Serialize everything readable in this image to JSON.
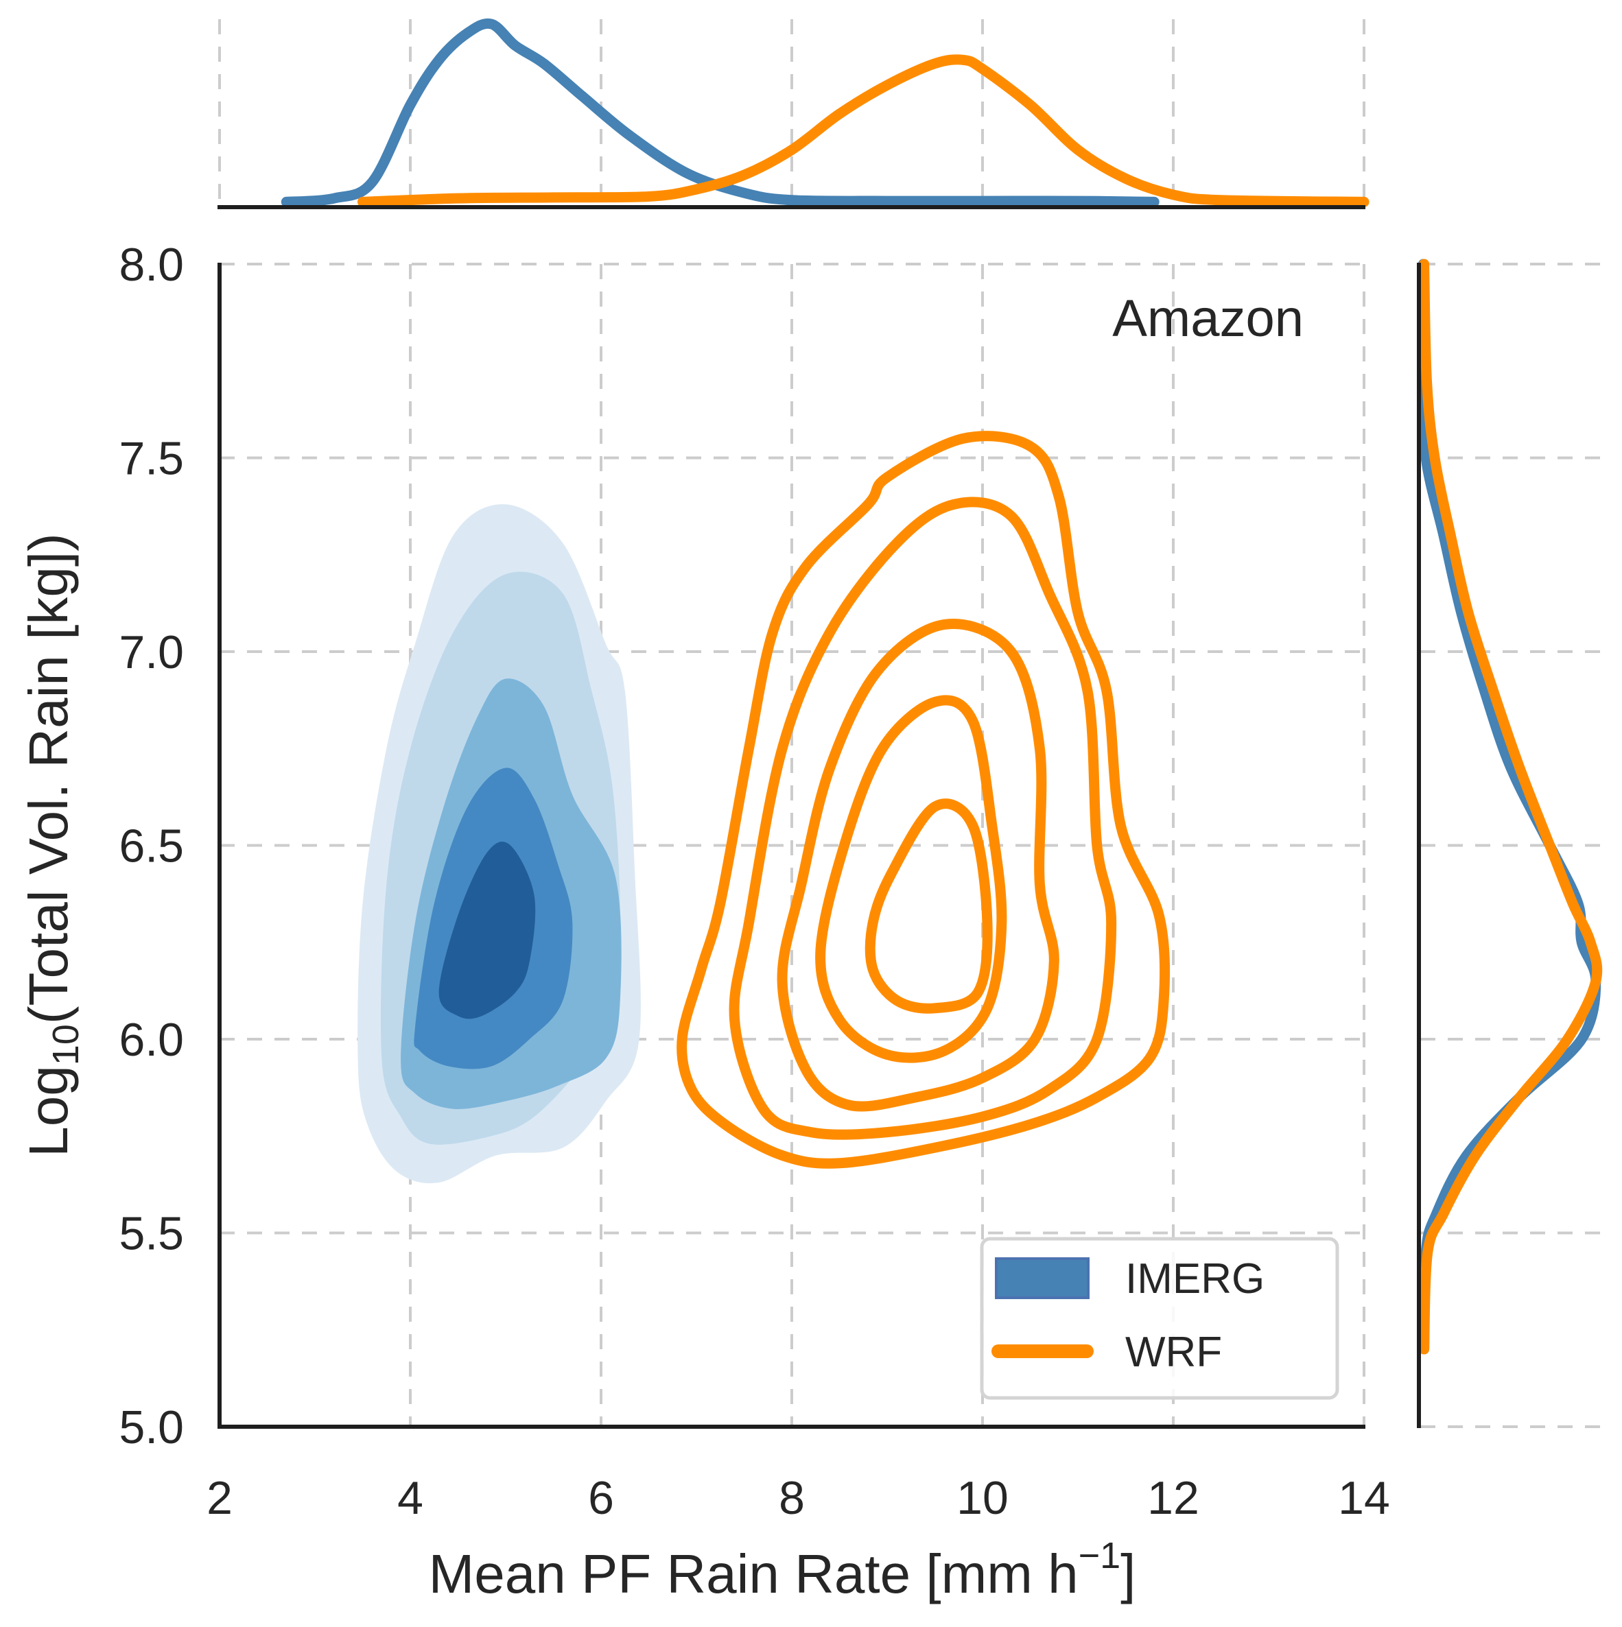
{
  "chart_data": {
    "type": "contour",
    "kind": "joint-kde",
    "annotation": "Amazon",
    "xlabel": "Mean PF Rain Rate [mm h",
    "xlabel_sup": "−1",
    "xlabel_suffix": "]",
    "ylabel_prefix": "Log",
    "ylabel_sub": "10",
    "ylabel_suffix": "(Total Vol. Rain [kg])",
    "xlim": [
      2,
      14
    ],
    "ylim": [
      5.0,
      8.0
    ],
    "xticks": [
      2,
      4,
      6,
      8,
      10,
      12,
      14
    ],
    "xtick_labels": [
      "2",
      "4",
      "6",
      "8",
      "10",
      "12",
      "14"
    ],
    "yticks": [
      5.0,
      5.5,
      6.0,
      6.5,
      7.0,
      7.5,
      8.0
    ],
    "ytick_labels": [
      "5.0",
      "5.5",
      "6.0",
      "6.5",
      "7.0",
      "7.5",
      "8.0"
    ],
    "grid": true,
    "grid_style": "dashed",
    "legend": {
      "position": "bottom-right",
      "entries": [
        {
          "label": "IMERG",
          "style": "filled",
          "color": "#4682b4"
        },
        {
          "label": "WRF",
          "style": "line",
          "color": "#ff8c00"
        }
      ]
    },
    "series": [
      {
        "name": "IMERG",
        "style": "filled",
        "colors": [
          "#dce9f4",
          "#bfd9eb",
          "#7db5d9",
          "#4489c3",
          "#215d98"
        ],
        "levels": [
          [
            [
              3.45,
              5.95
            ],
            [
              3.5,
              6.35
            ],
            [
              3.75,
              6.75
            ],
            [
              4.05,
              7.02
            ],
            [
              4.45,
              7.3
            ],
            [
              5.0,
              7.38
            ],
            [
              5.6,
              7.28
            ],
            [
              6.05,
              7.02
            ],
            [
              6.25,
              6.9
            ],
            [
              6.35,
              6.45
            ],
            [
              6.4,
              6.0
            ],
            [
              6.05,
              5.84
            ],
            [
              5.6,
              5.72
            ],
            [
              4.9,
              5.7
            ],
            [
              4.3,
              5.63
            ],
            [
              3.85,
              5.66
            ],
            [
              3.55,
              5.78
            ]
          ],
          [
            [
              3.7,
              5.95
            ],
            [
              3.75,
              6.4
            ],
            [
              4.0,
              6.75
            ],
            [
              4.45,
              7.05
            ],
            [
              5.0,
              7.2
            ],
            [
              5.6,
              7.15
            ],
            [
              5.9,
              6.9
            ],
            [
              6.12,
              6.65
            ],
            [
              6.2,
              6.3
            ],
            [
              6.1,
              6.05
            ],
            [
              5.8,
              5.93
            ],
            [
              5.3,
              5.8
            ],
            [
              4.85,
              5.75
            ],
            [
              4.2,
              5.73
            ],
            [
              3.9,
              5.8
            ]
          ],
          [
            [
              3.9,
              5.95
            ],
            [
              4.05,
              6.3
            ],
            [
              4.35,
              6.6
            ],
            [
              4.7,
              6.83
            ],
            [
              5.0,
              6.93
            ],
            [
              5.4,
              6.86
            ],
            [
              5.7,
              6.63
            ],
            [
              6.15,
              6.42
            ],
            [
              6.2,
              6.1
            ],
            [
              6.05,
              5.95
            ],
            [
              5.55,
              5.88
            ],
            [
              5.0,
              5.84
            ],
            [
              4.45,
              5.82
            ],
            [
              4.05,
              5.86
            ]
          ],
          [
            [
              4.05,
              6.03
            ],
            [
              4.25,
              6.35
            ],
            [
              4.6,
              6.6
            ],
            [
              5.0,
              6.7
            ],
            [
              5.3,
              6.62
            ],
            [
              5.55,
              6.45
            ],
            [
              5.7,
              6.3
            ],
            [
              5.6,
              6.1
            ],
            [
              5.25,
              6.0
            ],
            [
              4.85,
              5.93
            ],
            [
              4.4,
              5.93
            ],
            [
              4.1,
              5.97
            ]
          ],
          [
            [
              4.3,
              6.12
            ],
            [
              4.5,
              6.32
            ],
            [
              4.8,
              6.48
            ],
            [
              5.05,
              6.5
            ],
            [
              5.3,
              6.37
            ],
            [
              5.25,
              6.2
            ],
            [
              5.1,
              6.12
            ],
            [
              4.75,
              6.06
            ],
            [
              4.5,
              6.06
            ]
          ]
        ]
      },
      {
        "name": "WRF",
        "style": "line",
        "color": "#ff8c00",
        "levels": [
          [
            [
              6.85,
              6.0
            ],
            [
              7.05,
              6.18
            ],
            [
              7.25,
              6.35
            ],
            [
              7.55,
              6.75
            ],
            [
              7.8,
              7.05
            ],
            [
              8.15,
              7.22
            ],
            [
              8.8,
              7.38
            ],
            [
              9.0,
              7.45
            ],
            [
              9.8,
              7.55
            ],
            [
              10.5,
              7.53
            ],
            [
              10.8,
              7.4
            ],
            [
              11.0,
              7.1
            ],
            [
              11.3,
              6.9
            ],
            [
              11.45,
              6.55
            ],
            [
              11.85,
              6.32
            ],
            [
              11.9,
              6.1
            ],
            [
              11.75,
              5.95
            ],
            [
              11.2,
              5.85
            ],
            [
              10.5,
              5.78
            ],
            [
              9.5,
              5.72
            ],
            [
              8.5,
              5.68
            ],
            [
              7.9,
              5.7
            ],
            [
              7.3,
              5.78
            ],
            [
              6.95,
              5.87
            ]
          ],
          [
            [
              7.4,
              6.05
            ],
            [
              7.55,
              6.3
            ],
            [
              7.9,
              6.75
            ],
            [
              8.4,
              7.05
            ],
            [
              9.1,
              7.28
            ],
            [
              9.7,
              7.38
            ],
            [
              10.3,
              7.35
            ],
            [
              10.7,
              7.15
            ],
            [
              11.1,
              6.9
            ],
            [
              11.2,
              6.5
            ],
            [
              11.35,
              6.3
            ],
            [
              11.2,
              6.0
            ],
            [
              10.7,
              5.87
            ],
            [
              10.0,
              5.8
            ],
            [
              9.0,
              5.76
            ],
            [
              8.2,
              5.76
            ],
            [
              7.7,
              5.82
            ]
          ],
          [
            [
              7.9,
              6.15
            ],
            [
              8.1,
              6.4
            ],
            [
              8.4,
              6.7
            ],
            [
              8.9,
              6.95
            ],
            [
              9.6,
              7.07
            ],
            [
              10.3,
              7.0
            ],
            [
              10.6,
              6.75
            ],
            [
              10.6,
              6.4
            ],
            [
              10.75,
              6.2
            ],
            [
              10.55,
              6.0
            ],
            [
              10.0,
              5.9
            ],
            [
              9.3,
              5.85
            ],
            [
              8.6,
              5.83
            ],
            [
              8.15,
              5.92
            ]
          ],
          [
            [
              8.3,
              6.22
            ],
            [
              8.55,
              6.5
            ],
            [
              8.95,
              6.75
            ],
            [
              9.5,
              6.87
            ],
            [
              9.9,
              6.82
            ],
            [
              10.1,
              6.55
            ],
            [
              10.2,
              6.3
            ],
            [
              10.05,
              6.08
            ],
            [
              9.6,
              5.97
            ],
            [
              9.0,
              5.96
            ],
            [
              8.5,
              6.05
            ]
          ],
          [
            [
              8.85,
              6.3
            ],
            [
              9.05,
              6.43
            ],
            [
              9.5,
              6.6
            ],
            [
              9.9,
              6.55
            ],
            [
              10.05,
              6.3
            ],
            [
              9.95,
              6.12
            ],
            [
              9.5,
              6.08
            ],
            [
              9.1,
              6.1
            ],
            [
              8.85,
              6.18
            ]
          ]
        ]
      }
    ],
    "marginal_x": {
      "x": [
        2.7,
        3.2,
        3.6,
        4.0,
        4.3,
        4.6,
        4.85,
        5.1,
        5.4,
        5.8,
        6.3,
        6.9,
        7.5,
        8.0,
        9.0,
        10.0,
        11.0,
        11.8
      ],
      "IMERG": [
        0.01,
        0.03,
        0.12,
        0.55,
        0.8,
        0.95,
        1.0,
        0.88,
        0.78,
        0.6,
        0.38,
        0.17,
        0.06,
        0.02,
        0.015,
        0.015,
        0.015,
        0.01
      ],
      "WRF_x": [
        3.5,
        4.5,
        5.5,
        6.5,
        7.0,
        7.5,
        8.0,
        8.5,
        9.0,
        9.5,
        9.8,
        10.0,
        10.5,
        11.0,
        11.5,
        12.0,
        12.5,
        14.0
      ],
      "WRF": [
        0.01,
        0.03,
        0.035,
        0.04,
        0.08,
        0.16,
        0.3,
        0.5,
        0.66,
        0.78,
        0.8,
        0.75,
        0.55,
        0.3,
        0.14,
        0.05,
        0.02,
        0.01
      ]
    },
    "marginal_y": {
      "y": [
        5.2,
        5.45,
        5.55,
        5.7,
        5.85,
        6.0,
        6.15,
        6.25,
        6.35,
        6.5,
        6.7,
        6.9,
        7.1,
        7.3,
        7.5,
        7.7,
        8.0
      ],
      "IMERG": [
        0.01,
        0.02,
        0.08,
        0.25,
        0.55,
        0.9,
        0.98,
        0.9,
        0.88,
        0.72,
        0.5,
        0.35,
        0.22,
        0.12,
        0.02,
        0.01,
        0.005
      ],
      "WRF": [
        0.01,
        0.03,
        0.12,
        0.3,
        0.55,
        0.82,
        0.98,
        0.95,
        0.85,
        0.72,
        0.55,
        0.4,
        0.26,
        0.16,
        0.07,
        0.025,
        0.01
      ]
    }
  }
}
